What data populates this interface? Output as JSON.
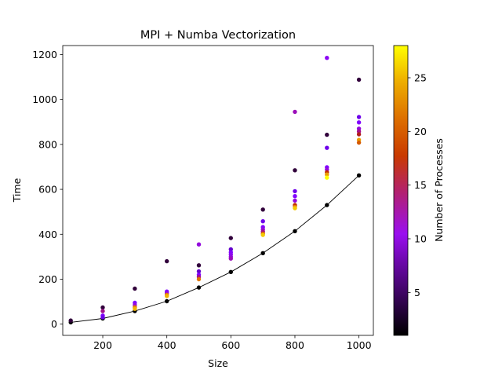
{
  "chart_data": {
    "type": "scatter",
    "title": "MPI + Numba Vectorization",
    "xlabel": "Size",
    "ylabel": "Time",
    "xlim": [
      75,
      1045
    ],
    "ylim": [
      -50,
      1240
    ],
    "xticks": [
      200,
      400,
      600,
      800,
      1000
    ],
    "yticks": [
      0,
      200,
      400,
      600,
      800,
      1000,
      1200
    ],
    "grid": false,
    "colorbar": {
      "label": "Number of Processes",
      "colormap": "gnuplot",
      "range": [
        1,
        28
      ],
      "ticks": [
        5,
        10,
        15,
        20,
        25
      ]
    },
    "trend_line": {
      "x": [
        100,
        200,
        300,
        400,
        500,
        600,
        700,
        800,
        900,
        1000
      ],
      "y": [
        8,
        25,
        58,
        102,
        163,
        232,
        316,
        414,
        530,
        662
      ]
    },
    "points": [
      {
        "x": 100,
        "y": 8,
        "p": 1
      },
      {
        "x": 100,
        "y": 16,
        "p": 2
      },
      {
        "x": 200,
        "y": 25,
        "p": 1
      },
      {
        "x": 200,
        "y": 74,
        "p": 2
      },
      {
        "x": 200,
        "y": 58,
        "p": 12
      },
      {
        "x": 200,
        "y": 38,
        "p": 8
      },
      {
        "x": 200,
        "y": 30,
        "p": 6
      },
      {
        "x": 300,
        "y": 58,
        "p": 1
      },
      {
        "x": 300,
        "y": 158,
        "p": 2
      },
      {
        "x": 300,
        "y": 95,
        "p": 8
      },
      {
        "x": 300,
        "y": 85,
        "p": 10
      },
      {
        "x": 300,
        "y": 75,
        "p": 22
      },
      {
        "x": 300,
        "y": 68,
        "p": 25
      },
      {
        "x": 400,
        "y": 102,
        "p": 1
      },
      {
        "x": 400,
        "y": 280,
        "p": 2
      },
      {
        "x": 400,
        "y": 145,
        "p": 8
      },
      {
        "x": 400,
        "y": 138,
        "p": 10
      },
      {
        "x": 400,
        "y": 130,
        "p": 22
      },
      {
        "x": 400,
        "y": 125,
        "p": 25
      },
      {
        "x": 500,
        "y": 163,
        "p": 1
      },
      {
        "x": 500,
        "y": 262,
        "p": 2
      },
      {
        "x": 500,
        "y": 355,
        "p": 10
      },
      {
        "x": 500,
        "y": 235,
        "p": 5
      },
      {
        "x": 500,
        "y": 220,
        "p": 8
      },
      {
        "x": 500,
        "y": 210,
        "p": 12
      },
      {
        "x": 500,
        "y": 200,
        "p": 22
      },
      {
        "x": 600,
        "y": 232,
        "p": 1
      },
      {
        "x": 600,
        "y": 383,
        "p": 2
      },
      {
        "x": 600,
        "y": 333,
        "p": 5
      },
      {
        "x": 600,
        "y": 320,
        "p": 8
      },
      {
        "x": 600,
        "y": 310,
        "p": 9
      },
      {
        "x": 600,
        "y": 300,
        "p": 10
      },
      {
        "x": 600,
        "y": 292,
        "p": 11
      },
      {
        "x": 700,
        "y": 316,
        "p": 1
      },
      {
        "x": 700,
        "y": 510,
        "p": 2
      },
      {
        "x": 700,
        "y": 458,
        "p": 6
      },
      {
        "x": 700,
        "y": 432,
        "p": 8
      },
      {
        "x": 700,
        "y": 422,
        "p": 10
      },
      {
        "x": 700,
        "y": 412,
        "p": 12
      },
      {
        "x": 700,
        "y": 403,
        "p": 20
      },
      {
        "x": 700,
        "y": 397,
        "p": 26
      },
      {
        "x": 800,
        "y": 414,
        "p": 1
      },
      {
        "x": 800,
        "y": 685,
        "p": 2
      },
      {
        "x": 800,
        "y": 945,
        "p": 11
      },
      {
        "x": 800,
        "y": 592,
        "p": 6
      },
      {
        "x": 800,
        "y": 570,
        "p": 8
      },
      {
        "x": 800,
        "y": 550,
        "p": 10
      },
      {
        "x": 800,
        "y": 530,
        "p": 16
      },
      {
        "x": 800,
        "y": 522,
        "p": 22
      },
      {
        "x": 800,
        "y": 516,
        "p": 26
      },
      {
        "x": 900,
        "y": 530,
        "p": 1
      },
      {
        "x": 900,
        "y": 843,
        "p": 2
      },
      {
        "x": 900,
        "y": 1185,
        "p": 9
      },
      {
        "x": 900,
        "y": 785,
        "p": 6
      },
      {
        "x": 900,
        "y": 698,
        "p": 8
      },
      {
        "x": 900,
        "y": 688,
        "p": 10
      },
      {
        "x": 900,
        "y": 676,
        "p": 16
      },
      {
        "x": 900,
        "y": 666,
        "p": 24
      },
      {
        "x": 900,
        "y": 652,
        "p": 28
      },
      {
        "x": 1000,
        "y": 662,
        "p": 1
      },
      {
        "x": 1000,
        "y": 1088,
        "p": 2
      },
      {
        "x": 1000,
        "y": 922,
        "p": 6
      },
      {
        "x": 1000,
        "y": 898,
        "p": 8
      },
      {
        "x": 1000,
        "y": 870,
        "p": 10
      },
      {
        "x": 1000,
        "y": 858,
        "p": 12
      },
      {
        "x": 1000,
        "y": 845,
        "p": 14
      },
      {
        "x": 1000,
        "y": 820,
        "p": 24
      },
      {
        "x": 1000,
        "y": 808,
        "p": 20
      }
    ]
  }
}
